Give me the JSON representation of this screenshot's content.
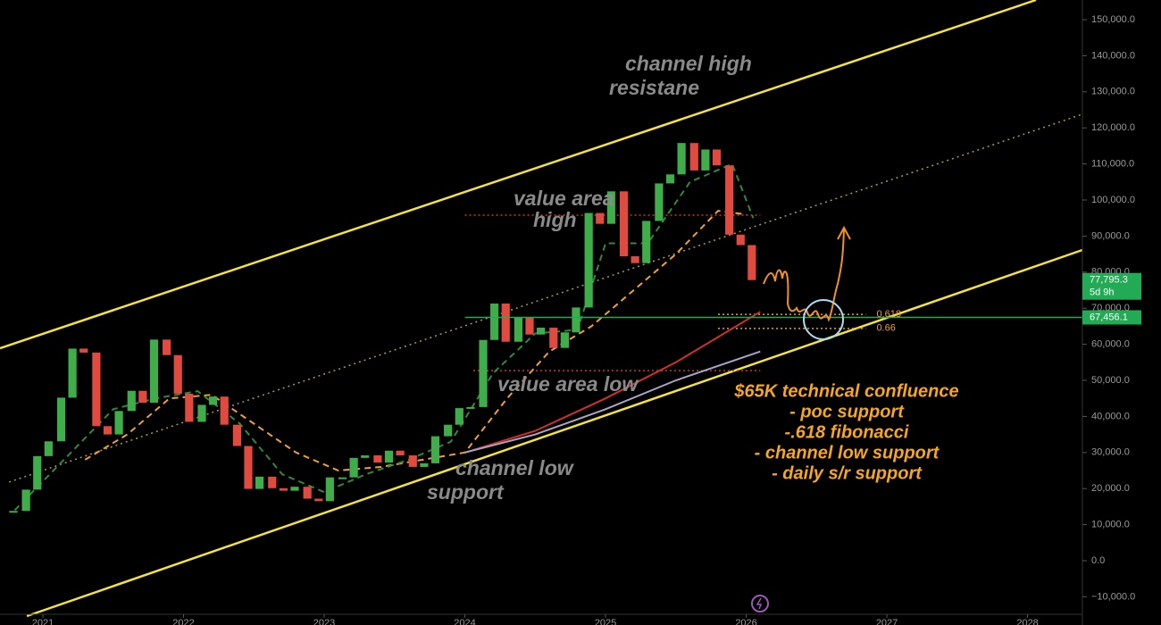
{
  "chart_data": {
    "type": "candlestick",
    "xlim": [
      2020.695,
      2028.39
    ],
    "ylim": [
      -15350,
      155450
    ],
    "xticks": [
      2021,
      2022,
      2023,
      2024,
      2025,
      2026,
      2027,
      2028
    ],
    "yticks": [
      {
        "value": 150000,
        "label": "150,000.0"
      },
      {
        "value": 140000,
        "label": "140,000.0"
      },
      {
        "value": 130000,
        "label": "130,000.0"
      },
      {
        "value": 120000,
        "label": "120,000.0"
      },
      {
        "value": 110000,
        "label": "110,000.0"
      },
      {
        "value": 100000,
        "label": "100,000.0"
      },
      {
        "value": 90000,
        "label": "90,000.0"
      },
      {
        "value": 80000,
        "label": "80,000.0"
      },
      {
        "value": 70000,
        "label": "70,000.0"
      },
      {
        "value": 60000,
        "label": "60,000.0"
      },
      {
        "value": 50000,
        "label": "50,000.0"
      },
      {
        "value": 40000,
        "label": "40,000.0"
      },
      {
        "value": 30000,
        "label": "30,000.0"
      },
      {
        "value": 20000,
        "label": "20,000.0"
      },
      {
        "value": 10000,
        "label": "10,000.0"
      },
      {
        "value": 0,
        "label": "0.0"
      },
      {
        "value": -10000,
        "label": "−10,000.0"
      }
    ],
    "price": {
      "up_color": "#3fae4a",
      "down_color": "#e04a3f",
      "x": [
        2020.79,
        2020.88,
        2020.96,
        2021.04,
        2021.13,
        2021.21,
        2021.29,
        2021.38,
        2021.46,
        2021.54,
        2021.63,
        2021.71,
        2021.79,
        2021.88,
        2021.96,
        2022.04,
        2022.13,
        2022.21,
        2022.29,
        2022.38,
        2022.46,
        2022.54,
        2022.63,
        2022.71,
        2022.79,
        2022.88,
        2022.96,
        2023.04,
        2023.13,
        2023.21,
        2023.29,
        2023.38,
        2023.46,
        2023.54,
        2023.63,
        2023.71,
        2023.79,
        2023.88,
        2023.96,
        2024.04,
        2024.13,
        2024.21,
        2024.29,
        2024.38,
        2024.46,
        2024.54,
        2024.63,
        2024.71,
        2024.79,
        2024.88,
        2024.96,
        2025.04,
        2025.13,
        2025.21,
        2025.29,
        2025.38,
        2025.46,
        2025.54,
        2025.63,
        2025.71,
        2025.79,
        2025.88,
        2025.96,
        2026.04
      ],
      "values": [
        13800,
        19700,
        29000,
        33100,
        45200,
        58800,
        57700,
        37300,
        35000,
        41500,
        47100,
        43800,
        61300,
        57000,
        46300,
        38500,
        43200,
        45500,
        37700,
        31800,
        19900,
        23300,
        20100,
        19400,
        20500,
        17200,
        16500,
        23100,
        23100,
        28500,
        29200,
        27200,
        30500,
        29200,
        26000,
        27000,
        34500,
        37700,
        42300,
        42600,
        61200,
        71300,
        60700,
        67500,
        62700,
        64600,
        59000,
        63300,
        70200,
        96400,
        93400,
        102400,
        84400,
        82500,
        94200,
        104600,
        107100,
        115800,
        108200,
        114000,
        109600,
        90400,
        87500,
        77795.3
      ]
    },
    "lines": [
      {
        "color": "#f0a030",
        "style": "dashed",
        "x": [
          2021.3,
          2021.6,
          2021.9,
          2022.2,
          2022.5,
          2022.8,
          2023.1,
          2023.4,
          2023.7,
          2024.0,
          2024.3,
          2024.6,
          2024.9,
          2025.2,
          2025.5,
          2025.8,
          2026.0
        ],
        "values": [
          28000,
          35000,
          45000,
          46000,
          38000,
          30000,
          25000,
          26000,
          28000,
          30000,
          45000,
          58000,
          65000,
          75000,
          85000,
          97000,
          96000
        ]
      },
      {
        "color": "#2f8a3a",
        "style": "dashed",
        "x": [
          2020.8,
          2021.2,
          2021.5,
          2021.8,
          2022.1,
          2022.4,
          2022.7,
          2023.0,
          2023.3,
          2023.6,
          2023.9,
          2024.2,
          2024.5,
          2024.8,
          2025.0,
          2025.3,
          2025.6,
          2025.9,
          2026.05
        ],
        "values": [
          14000,
          30000,
          42000,
          45000,
          47000,
          38000,
          24000,
          19000,
          24000,
          28000,
          33000,
          52000,
          63000,
          64000,
          88000,
          88000,
          105000,
          110000,
          95000
        ]
      },
      {
        "color": "#d0302a",
        "style": "solid",
        "x": [
          2024.0,
          2024.5,
          2025.0,
          2025.5,
          2026.1
        ],
        "values": [
          30000,
          36000,
          45000,
          55000,
          69000
        ]
      },
      {
        "color": "#a9a4c8",
        "style": "solid",
        "x": [
          2024.0,
          2024.5,
          2025.0,
          2025.5,
          2026.1
        ],
        "values": [
          30000,
          35000,
          42000,
          50000,
          58000
        ]
      }
    ],
    "channel": [
      {
        "color": "#f5e23a",
        "style": "solid",
        "x": [
          2020.695,
          2028.06
        ],
        "values": [
          58900,
          155450
        ]
      },
      {
        "color": "#f5e23a",
        "style": "solid",
        "x": [
          2020.886,
          2028.39
        ],
        "values": [
          -15350,
          86140
        ]
      },
      {
        "color": "#a89a50",
        "style": "dotted",
        "x": [
          2020.76,
          2028.39
        ],
        "values": [
          21800,
          123800
        ]
      }
    ],
    "levels": [
      {
        "value": 95800,
        "from": 2024.0,
        "to": 2026.1,
        "color": "#c8382e"
      },
      {
        "value": 52700,
        "from": 2024.06,
        "to": 2026.1,
        "color": "#c8382e"
      }
    ],
    "support": {
      "value": 67456.1,
      "label": "67,456.1",
      "from": 2024.0,
      "color": "#22ab54"
    },
    "last_price": {
      "value": 77795.3,
      "label": "77,795.3",
      "countdown": "5d 9h",
      "color": "#22ab54"
    },
    "fib": [
      {
        "ratio": 0.618,
        "price": 68300,
        "from": 2025.8,
        "to": 2026.85
      },
      {
        "ratio": 0.66,
        "price": 64400,
        "from": 2025.8,
        "to": 2026.85
      }
    ],
    "annotations": [
      {
        "lines": [
          "channel high",
          "resistane"
        ]
      },
      {
        "lines": [
          "value area",
          "high"
        ]
      },
      {
        "lines": [
          "value area low"
        ]
      },
      {
        "lines": [
          "channel low",
          "support"
        ]
      },
      {
        "lines": [
          "$65K technical confluence",
          "- poc support",
          "-.618 fibonacci",
          "- channel low support",
          "- daily s/r support"
        ]
      }
    ]
  }
}
